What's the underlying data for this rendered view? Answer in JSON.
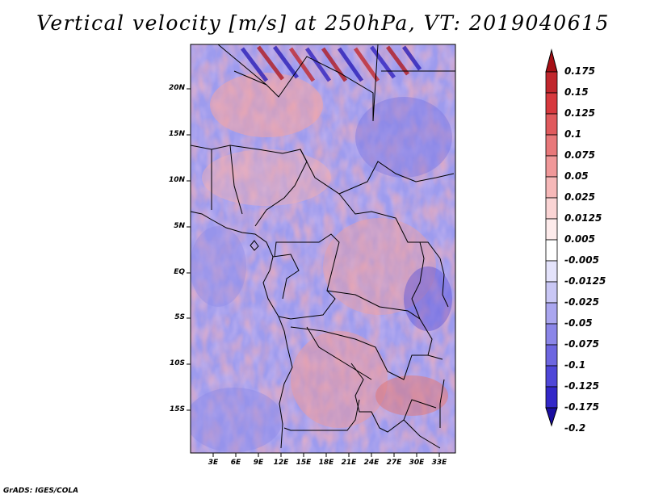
{
  "title": "Vertical velocity [m/s] at 250hPa, VT: 2019040615",
  "footer": "GrADS: IGES/COLA",
  "map": {
    "lat_labels": [
      "20N",
      "15N",
      "10N",
      "5N",
      "EQ",
      "5S",
      "10S",
      "15S"
    ],
    "lon_labels": [
      "3E",
      "6E",
      "9E",
      "12E",
      "15E",
      "18E",
      "21E",
      "24E",
      "27E",
      "30E",
      "33E"
    ]
  },
  "colorbar": {
    "levels": [
      "0.175",
      "0.15",
      "0.125",
      "0.1",
      "0.075",
      "0.05",
      "0.025",
      "0.0125",
      "0.005",
      "-0.005",
      "-0.0125",
      "-0.025",
      "-0.05",
      "-0.075",
      "-0.1",
      "-0.125",
      "-0.175",
      "-0.2"
    ],
    "colors": [
      "#a50f15",
      "#c1272d",
      "#d7393e",
      "#e05a5d",
      "#e8787a",
      "#f09899",
      "#f6b8b8",
      "#fad4d4",
      "#fdebeb",
      "#ffffff",
      "#e4e3fb",
      "#c9c7f5",
      "#aaa6ef",
      "#8b86e8",
      "#6d66e0",
      "#4f47d8",
      "#3328c8",
      "#1a0ea0"
    ]
  }
}
